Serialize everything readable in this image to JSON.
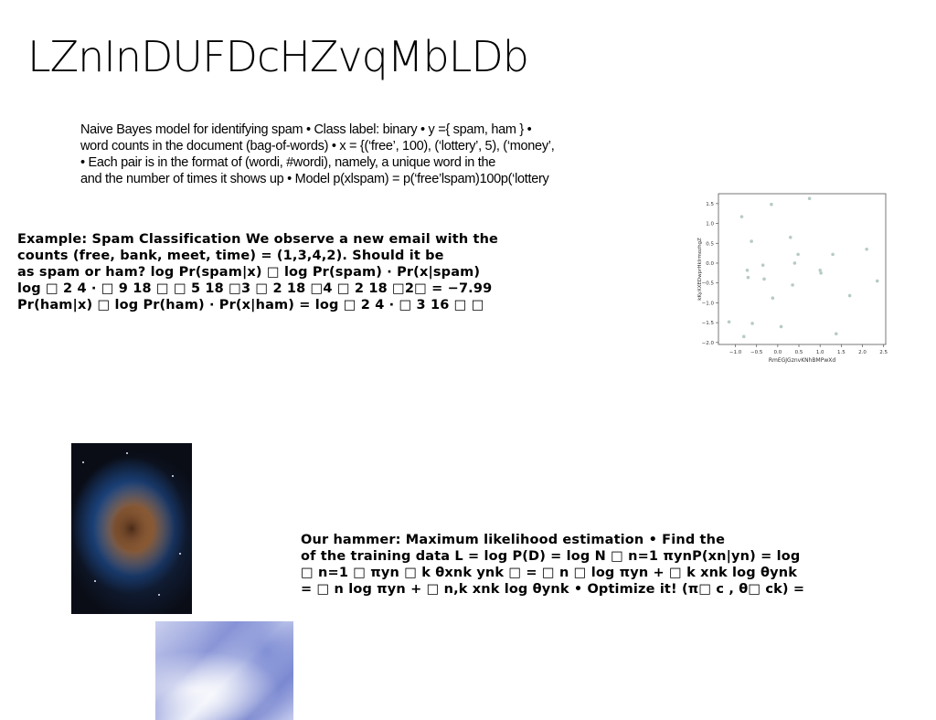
{
  "title": "LZnInDUFDcHZvqMbLDb",
  "para1": [
    "Naive Bayes model for identifying spam • Class label: binary • y ={ spam, ham } •",
    "word counts in the document (bag-of-words) • x = {(‘free’, 100), (‘lottery’, 5), (‘money’,",
    "• Each pair is in the format of (wordi, #wordi), namely, a unique word in the",
    "and the number of times it shows up • Model p(xlspam) = p(‘free’lspam)100p(‘lottery"
  ],
  "para2": [
    "Example: Spam Classification We observe a new email with the",
    "counts (free, bank, meet, time) = (1,3,4,2). Should it be",
    "as spam or ham? log Pr(spam|x) □ log Pr(spam) · Pr(x|spam)",
    "log □ 2 4 · □ 9 18 □ □ 5 18 □3 □ 2 18 □4 □ 2 18 □2□ = −7.99",
    "Pr(ham|x) □ log Pr(ham) · Pr(x|ham) = log □ 2 4 · □ 3 16 □ □"
  ],
  "para3": [
    "Our hammer: Maximum likelihood estimation • Find the",
    "of the training data L = log P(D) = log N □ n=1 πynP(xn|yn) = log",
    "□ n=1 □ πyn □ k θxnk ynk □ = □ n □ log πyn + □ k xnk log θynk",
    "= □ n log πyn + □ n,k xnk log θynk • Optimize it! (π□ c , θ□ ck) ="
  ],
  "chart_data": {
    "type": "scatter",
    "xlabel": "RmEGJGznvKNhBMPwXd",
    "ylabel": "kKyXXEDwprHkIrmozhgZ",
    "xlim": [
      -1.5,
      2.5
    ],
    "ylim": [
      -2.0,
      1.75
    ],
    "xticks": [
      "−1.0",
      "−0.5",
      "0.0",
      "0.5",
      "1.0",
      "1.5",
      "2.0",
      "2.5"
    ],
    "yticks": [
      "1.5",
      "1.0",
      "0.5",
      "0.0",
      "−0.5",
      "−1.0",
      "−1.5",
      "−2.0"
    ],
    "color": "#b7cbc4",
    "points": [
      [
        -1.15,
        -1.48
      ],
      [
        -0.85,
        1.17
      ],
      [
        -0.8,
        -1.85
      ],
      [
        -0.72,
        -0.18
      ],
      [
        -0.7,
        -0.36
      ],
      [
        -0.62,
        0.55
      ],
      [
        -0.6,
        -1.52
      ],
      [
        -0.35,
        -0.05
      ],
      [
        -0.32,
        -0.4
      ],
      [
        -0.15,
        1.48
      ],
      [
        -0.12,
        -0.88
      ],
      [
        0.08,
        -1.6
      ],
      [
        0.3,
        0.65
      ],
      [
        0.35,
        -0.55
      ],
      [
        0.4,
        0.0
      ],
      [
        0.48,
        0.22
      ],
      [
        0.75,
        1.63
      ],
      [
        1.0,
        -0.18
      ],
      [
        1.02,
        -0.25
      ],
      [
        1.3,
        0.22
      ],
      [
        1.38,
        -1.78
      ],
      [
        1.7,
        -0.82
      ],
      [
        2.1,
        0.35
      ],
      [
        2.35,
        -0.45
      ]
    ]
  }
}
